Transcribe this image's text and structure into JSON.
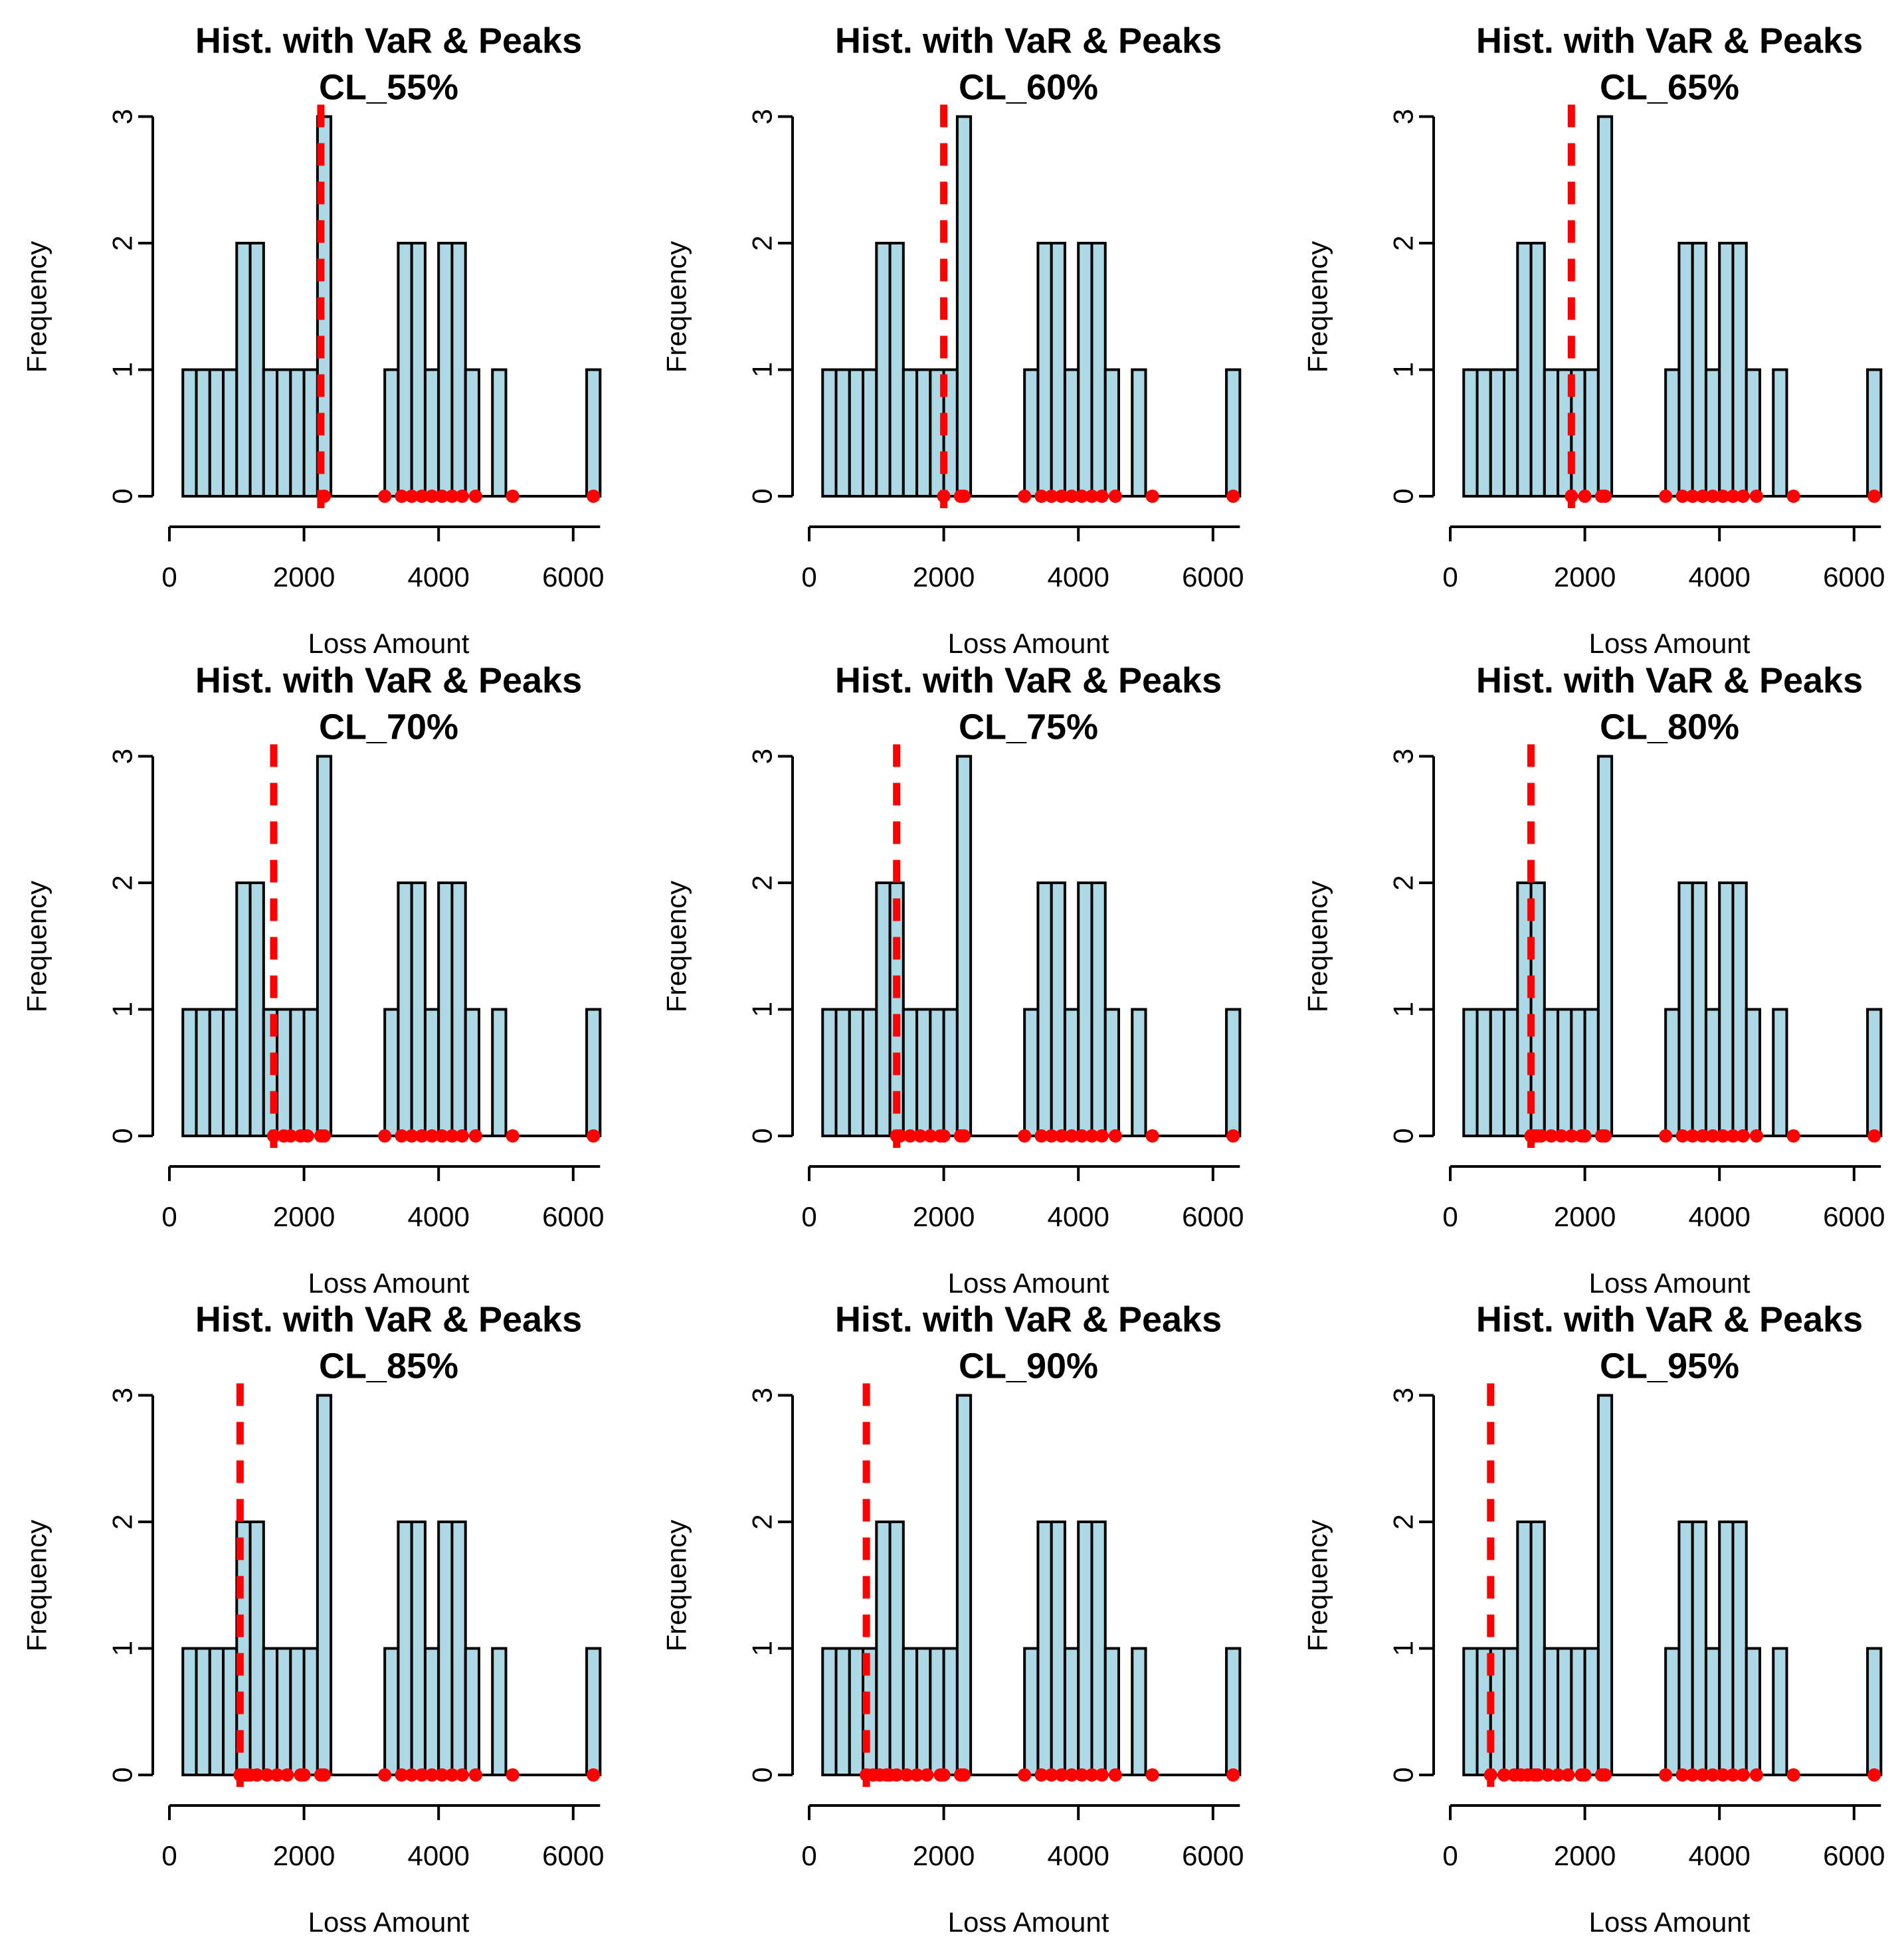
{
  "chart_data": {
    "type": "bar",
    "layout": "3x3 grid of histograms",
    "title": "Hist. with VaR & Peaks",
    "xlabel": "Loss Amount",
    "ylabel": "Frequency",
    "xlim": [
      0,
      6400
    ],
    "ylim": [
      0,
      3
    ],
    "xticks": [
      "0",
      "2000",
      "4000",
      "6000"
    ],
    "yticks": [
      "0",
      "1",
      "2",
      "3"
    ],
    "bin_width": 200,
    "bin_start": 200,
    "frequencies": [
      1,
      1,
      1,
      1,
      2,
      2,
      1,
      1,
      1,
      1,
      3,
      0,
      0,
      0,
      0,
      1,
      2,
      2,
      1,
      2,
      2,
      1,
      0,
      1,
      0,
      0,
      0,
      0,
      0,
      0,
      1
    ],
    "bar_color": "#add8e6",
    "var_line_color": "#ff0000",
    "peak_color": "#ff0000",
    "panels": [
      {
        "subtitle": "CL_55%",
        "var": 2250,
        "peaks": [
          2300,
          3200,
          3450,
          3600,
          3750,
          3900,
          4050,
          4200,
          4350,
          4550,
          5100,
          6300
        ]
      },
      {
        "subtitle": "CL_60%",
        "var": 2000,
        "peaks": [
          2000,
          2250,
          2300,
          3200,
          3450,
          3600,
          3750,
          3900,
          4050,
          4200,
          4350,
          4550,
          5100,
          6300
        ]
      },
      {
        "subtitle": "CL_65%",
        "var": 1800,
        "peaks": [
          1800,
          2000,
          2250,
          2300,
          3200,
          3450,
          3600,
          3750,
          3900,
          4050,
          4200,
          4350,
          4550,
          5100,
          6300
        ]
      },
      {
        "subtitle": "CL_70%",
        "var": 1550,
        "peaks": [
          1550,
          1700,
          1800,
          1950,
          2050,
          2250,
          2300,
          3200,
          3450,
          3600,
          3750,
          3900,
          4050,
          4200,
          4350,
          4550,
          5100,
          6300
        ]
      },
      {
        "subtitle": "CL_75%",
        "var": 1300,
        "peaks": [
          1300,
          1350,
          1500,
          1650,
          1800,
          1950,
          2000,
          2250,
          2300,
          3200,
          3450,
          3600,
          3750,
          3900,
          4050,
          4200,
          4350,
          4550,
          5100,
          6300
        ]
      },
      {
        "subtitle": "CL_80%",
        "var": 1200,
        "peaks": [
          1200,
          1250,
          1300,
          1350,
          1500,
          1650,
          1800,
          1950,
          2000,
          2250,
          2300,
          3200,
          3450,
          3600,
          3750,
          3900,
          4050,
          4200,
          4350,
          4550,
          5100,
          6300
        ]
      },
      {
        "subtitle": "CL_85%",
        "var": 1050,
        "peaks": [
          1050,
          1100,
          1150,
          1200,
          1300,
          1450,
          1600,
          1750,
          1950,
          2000,
          2250,
          2300,
          3200,
          3450,
          3600,
          3750,
          3900,
          4050,
          4200,
          4350,
          4550,
          5100,
          6300
        ]
      },
      {
        "subtitle": "CL_90%",
        "var": 850,
        "peaks": [
          850,
          950,
          1050,
          1150,
          1200,
          1300,
          1450,
          1600,
          1750,
          1950,
          2000,
          2250,
          2300,
          3200,
          3450,
          3600,
          3750,
          3900,
          4050,
          4200,
          4350,
          4550,
          5100,
          6300
        ]
      },
      {
        "subtitle": "CL_95%",
        "var": 600,
        "peaks": [
          600,
          800,
          950,
          1050,
          1150,
          1250,
          1300,
          1450,
          1600,
          1750,
          1950,
          2000,
          2250,
          2300,
          3200,
          3450,
          3600,
          3750,
          3900,
          4050,
          4200,
          4350,
          4550,
          5100,
          6300
        ]
      }
    ]
  }
}
